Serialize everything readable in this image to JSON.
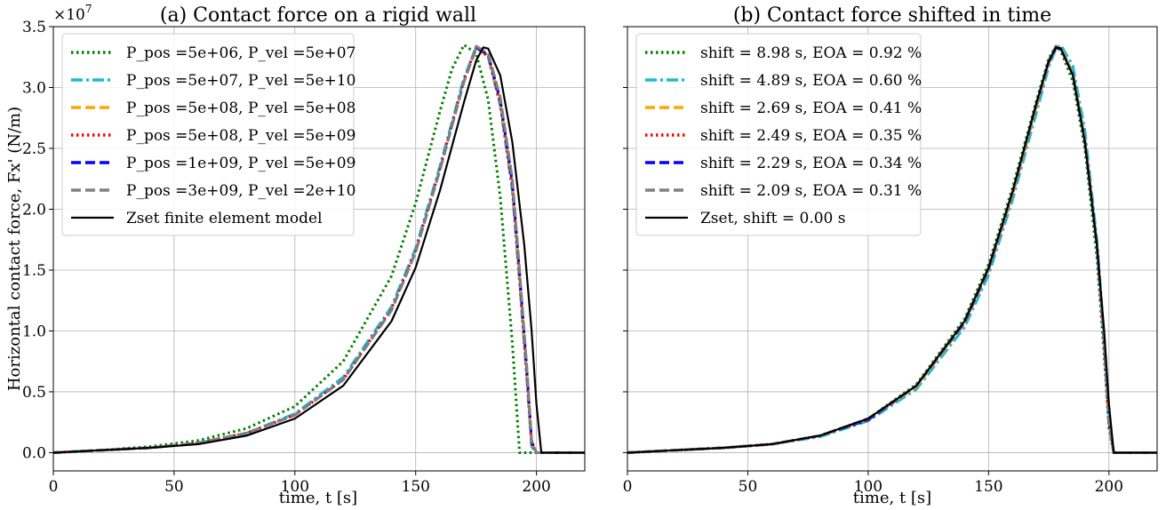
{
  "figure": {
    "y_scale_label": "×10",
    "y_scale_exponent": "7"
  },
  "chart_data": [
    {
      "type": "line",
      "title": "(a) Contact force on a rigid wall",
      "xlabel": "time, t [s]",
      "ylabel": "Horizontal contact force, Fx' (N/m)",
      "xlim": [
        0,
        220
      ],
      "ylim": [
        -0.15,
        3.5
      ],
      "y_multiplier": "×10^7",
      "xticks": [
        0,
        50,
        100,
        150,
        200
      ],
      "xtick_labels": [
        "0",
        "50",
        "100",
        "150",
        "200"
      ],
      "yticks": [
        0.0,
        0.5,
        1.0,
        1.5,
        2.0,
        2.5,
        3.0,
        3.5
      ],
      "ytick_labels": [
        "0.0",
        "0.5",
        "1.0",
        "1.5",
        "2.0",
        "2.5",
        "3.0",
        "3.5"
      ],
      "grid": true,
      "legend_position": "top-left",
      "series": [
        {
          "name": "P_pos =5e+06, P_vel =5e+07",
          "color": "#008000",
          "dash": "dotted",
          "x": [
            0,
            20,
            40,
            60,
            80,
            100,
            120,
            140,
            150,
            160,
            165,
            170,
            175,
            180,
            185,
            190,
            193,
            196,
            220
          ],
          "y": [
            0.0,
            0.02,
            0.05,
            0.1,
            0.2,
            0.38,
            0.75,
            1.45,
            2.05,
            2.8,
            3.15,
            3.35,
            3.28,
            2.9,
            2.1,
            0.9,
            0.0,
            0.0,
            0.0
          ]
        },
        {
          "name": "P_pos =5e+07, P_vel =5e+10",
          "color": "#17becf",
          "dash": "dashdot",
          "x": [
            0,
            20,
            40,
            60,
            80,
            100,
            120,
            140,
            150,
            160,
            170,
            175,
            180,
            185,
            190,
            193,
            196,
            198,
            200,
            220
          ],
          "y": [
            0.0,
            0.02,
            0.04,
            0.08,
            0.16,
            0.32,
            0.62,
            1.2,
            1.68,
            2.35,
            3.08,
            3.33,
            3.25,
            2.85,
            2.15,
            1.4,
            0.6,
            0.05,
            0.0,
            0.0
          ]
        },
        {
          "name": "P_pos =5e+08, P_vel =5e+08",
          "color": "#ffa500",
          "dash": "dashed",
          "x": [
            0,
            20,
            40,
            60,
            80,
            100,
            120,
            140,
            150,
            160,
            170,
            175,
            180,
            185,
            190,
            193,
            196,
            198,
            200,
            220
          ],
          "y": [
            0.0,
            0.02,
            0.04,
            0.08,
            0.16,
            0.31,
            0.6,
            1.17,
            1.65,
            2.32,
            3.05,
            3.32,
            3.26,
            2.88,
            2.2,
            1.45,
            0.65,
            0.08,
            0.0,
            0.0
          ]
        },
        {
          "name": "P_pos =5e+08, P_vel =5e+09",
          "color": "#ff0000",
          "dash": "dotted",
          "x": [
            0,
            20,
            40,
            60,
            80,
            100,
            120,
            140,
            150,
            160,
            170,
            175,
            180,
            185,
            190,
            193,
            196,
            198,
            200,
            220
          ],
          "y": [
            0.0,
            0.02,
            0.04,
            0.08,
            0.16,
            0.31,
            0.6,
            1.18,
            1.66,
            2.33,
            3.06,
            3.33,
            3.26,
            2.87,
            2.18,
            1.43,
            0.63,
            0.07,
            0.0,
            0.0
          ]
        },
        {
          "name": "P_pos =1e+09, P_vel =5e+09",
          "color": "#0000ff",
          "dash": "dashed",
          "x": [
            0,
            20,
            40,
            60,
            80,
            100,
            120,
            140,
            150,
            160,
            170,
            175,
            180,
            185,
            190,
            193,
            196,
            198,
            200,
            220
          ],
          "y": [
            0.0,
            0.02,
            0.04,
            0.08,
            0.16,
            0.31,
            0.6,
            1.17,
            1.65,
            2.32,
            3.05,
            3.33,
            3.27,
            2.9,
            2.22,
            1.48,
            0.68,
            0.09,
            0.0,
            0.0
          ]
        },
        {
          "name": "P_pos =3e+09, P_vel =2e+10",
          "color": "#808080",
          "dash": "dashed",
          "x": [
            0,
            20,
            40,
            60,
            80,
            100,
            120,
            140,
            150,
            160,
            170,
            175,
            180,
            185,
            190,
            193,
            196,
            198,
            200,
            220
          ],
          "y": [
            0.0,
            0.02,
            0.04,
            0.08,
            0.16,
            0.31,
            0.6,
            1.17,
            1.65,
            2.32,
            3.05,
            3.34,
            3.28,
            2.92,
            2.25,
            1.5,
            0.7,
            0.1,
            0.0,
            0.0
          ]
        },
        {
          "name": "Zset finite element model",
          "color": "#000000",
          "dash": "solid",
          "x": [
            0,
            20,
            40,
            60,
            80,
            100,
            120,
            140,
            150,
            160,
            170,
            175,
            178,
            180,
            185,
            190,
            195,
            198,
            200,
            202,
            220
          ],
          "y": [
            0.0,
            0.02,
            0.04,
            0.07,
            0.14,
            0.28,
            0.55,
            1.08,
            1.52,
            2.15,
            2.88,
            3.22,
            3.33,
            3.32,
            3.1,
            2.55,
            1.7,
            1.0,
            0.4,
            0.0,
            0.0
          ]
        }
      ]
    },
    {
      "type": "line",
      "title": "(b) Contact force shifted in time",
      "xlabel": "time, t [s]",
      "xlim": [
        0,
        220
      ],
      "ylim": [
        -0.15,
        3.5
      ],
      "xticks": [
        0,
        50,
        100,
        150,
        200
      ],
      "xtick_labels": [
        "0",
        "50",
        "100",
        "150",
        "200"
      ],
      "grid": true,
      "legend_position": "top-left",
      "series": [
        {
          "name": "shift = 8.98 s, EOA = 0.92 %",
          "color": "#008000",
          "dash": "dotted",
          "x": [
            0,
            20,
            40,
            60,
            80,
            100,
            120,
            140,
            150,
            160,
            170,
            175,
            178,
            180,
            185,
            190,
            195,
            198,
            200,
            202,
            220
          ],
          "y": [
            0.0,
            0.02,
            0.04,
            0.07,
            0.14,
            0.28,
            0.56,
            1.1,
            1.55,
            2.18,
            2.9,
            3.24,
            3.34,
            3.3,
            3.05,
            2.5,
            1.6,
            0.8,
            0.2,
            0.0,
            0.0
          ]
        },
        {
          "name": "shift = 4.89 s, EOA = 0.60 %",
          "color": "#17becf",
          "dash": "dashdot",
          "x": [
            0,
            20,
            40,
            60,
            80,
            100,
            120,
            140,
            150,
            160,
            170,
            175,
            178,
            180,
            185,
            190,
            195,
            198,
            200,
            202,
            220
          ],
          "y": [
            0.0,
            0.02,
            0.04,
            0.07,
            0.13,
            0.26,
            0.52,
            1.03,
            1.46,
            2.08,
            2.8,
            3.17,
            3.32,
            3.35,
            3.18,
            2.65,
            1.75,
            0.95,
            0.3,
            0.0,
            0.0
          ]
        },
        {
          "name": "shift = 2.69 s, EOA = 0.41 %",
          "color": "#ffa500",
          "dash": "dashed",
          "x": [
            0,
            20,
            40,
            60,
            80,
            100,
            120,
            140,
            150,
            160,
            170,
            175,
            178,
            180,
            185,
            190,
            195,
            198,
            200,
            202,
            220
          ],
          "y": [
            0.0,
            0.02,
            0.04,
            0.07,
            0.14,
            0.27,
            0.54,
            1.06,
            1.5,
            2.12,
            2.85,
            3.2,
            3.33,
            3.33,
            3.12,
            2.58,
            1.7,
            0.9,
            0.25,
            0.0,
            0.0
          ]
        },
        {
          "name": "shift = 2.49 s, EOA = 0.35 %",
          "color": "#ff0000",
          "dash": "dotted",
          "x": [
            0,
            20,
            40,
            60,
            80,
            100,
            120,
            140,
            150,
            160,
            170,
            175,
            178,
            180,
            185,
            190,
            195,
            198,
            200,
            202,
            220
          ],
          "y": [
            0.0,
            0.02,
            0.04,
            0.07,
            0.14,
            0.27,
            0.55,
            1.07,
            1.51,
            2.13,
            2.86,
            3.21,
            3.33,
            3.32,
            3.11,
            2.57,
            1.7,
            0.9,
            0.25,
            0.0,
            0.0
          ]
        },
        {
          "name": "shift = 2.29 s, EOA = 0.34 %",
          "color": "#0000ff",
          "dash": "dashed",
          "x": [
            0,
            20,
            40,
            60,
            80,
            100,
            120,
            140,
            150,
            160,
            170,
            175,
            178,
            180,
            185,
            190,
            195,
            198,
            200,
            202,
            220
          ],
          "y": [
            0.0,
            0.02,
            0.04,
            0.07,
            0.14,
            0.27,
            0.55,
            1.07,
            1.51,
            2.14,
            2.87,
            3.21,
            3.33,
            3.32,
            3.11,
            2.56,
            1.7,
            0.9,
            0.25,
            0.0,
            0.0
          ]
        },
        {
          "name": "shift = 2.09 s, EOA = 0.31 %",
          "color": "#808080",
          "dash": "dashed",
          "x": [
            0,
            20,
            40,
            60,
            80,
            100,
            120,
            140,
            150,
            160,
            170,
            175,
            178,
            180,
            185,
            190,
            195,
            198,
            200,
            202,
            220
          ],
          "y": [
            0.0,
            0.02,
            0.04,
            0.07,
            0.14,
            0.28,
            0.55,
            1.08,
            1.52,
            2.14,
            2.87,
            3.22,
            3.34,
            3.32,
            3.11,
            2.56,
            1.7,
            0.9,
            0.25,
            0.0,
            0.0
          ]
        },
        {
          "name": "Zset, shift = 0.00 s",
          "color": "#000000",
          "dash": "solid",
          "x": [
            0,
            20,
            40,
            60,
            80,
            100,
            120,
            140,
            150,
            160,
            170,
            175,
            178,
            180,
            185,
            190,
            195,
            198,
            200,
            202,
            220
          ],
          "y": [
            0.0,
            0.02,
            0.04,
            0.07,
            0.14,
            0.28,
            0.55,
            1.08,
            1.52,
            2.15,
            2.88,
            3.22,
            3.33,
            3.32,
            3.1,
            2.55,
            1.7,
            1.0,
            0.4,
            0.0,
            0.0
          ]
        }
      ]
    }
  ]
}
